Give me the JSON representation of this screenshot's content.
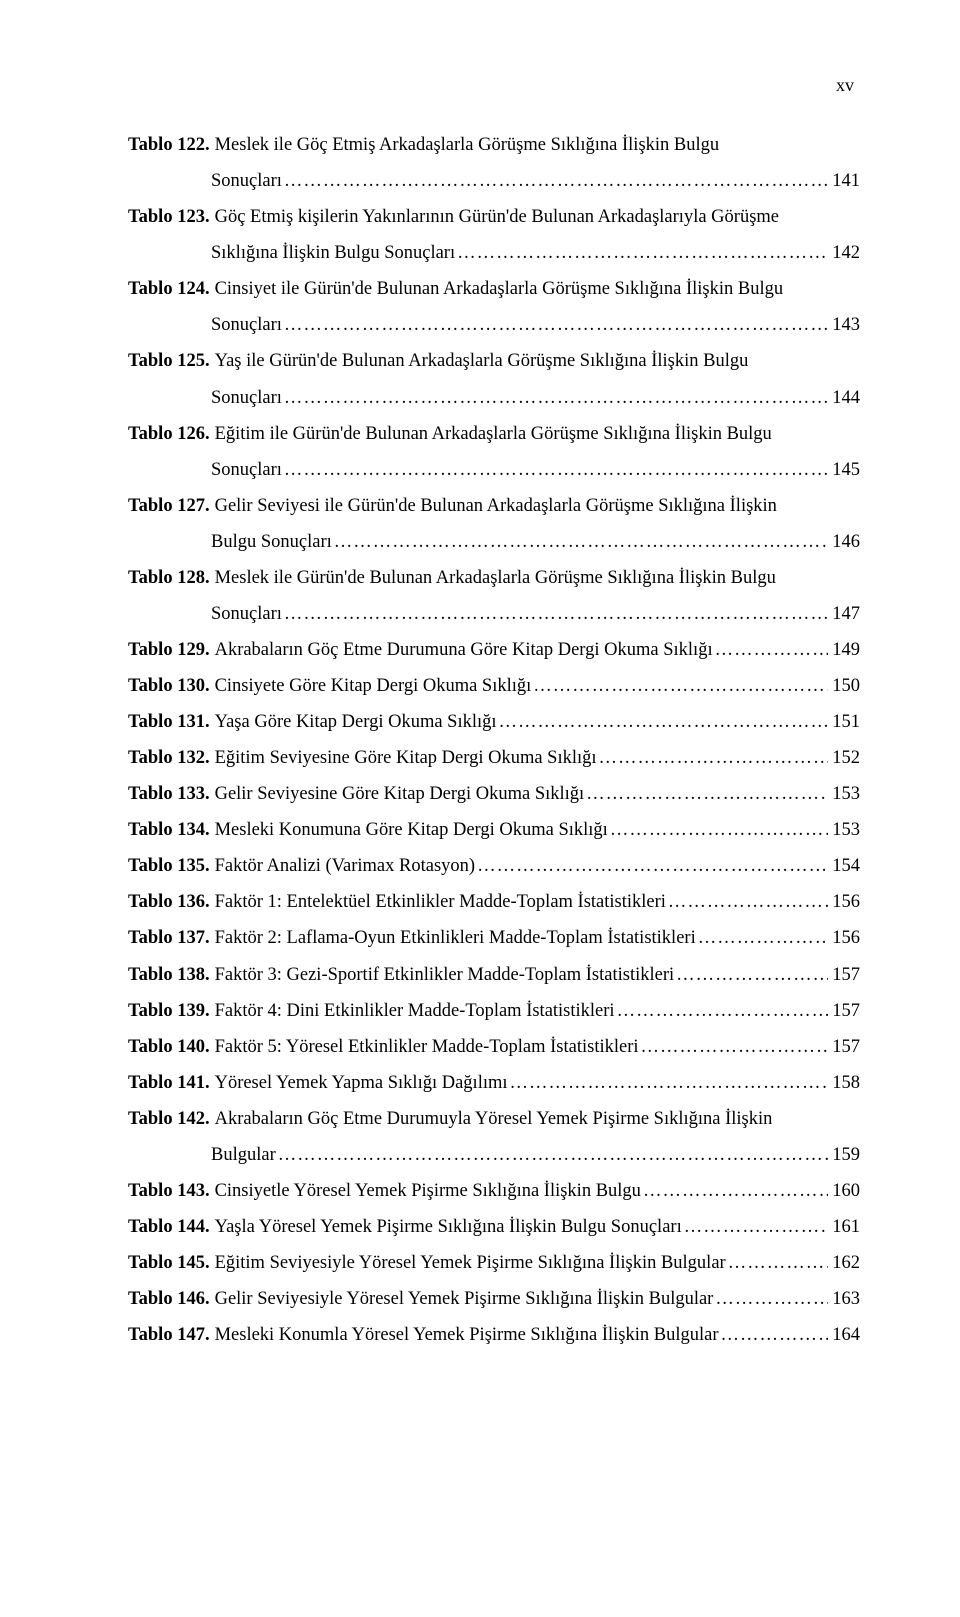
{
  "page_number": "xv",
  "font_family": "Times New Roman",
  "base_font_size_pt": 14,
  "text_color": "#000000",
  "background_color": "#ffffff",
  "entries": [
    {
      "label": "Tablo 122.",
      "lines": [
        "Meslek ile Göç Etmiş Arkadaşlarla Görüşme Sıklığına İlişkin Bulgu",
        "Sonuçları"
      ],
      "page": "141"
    },
    {
      "label": "Tablo 123.",
      "lines": [
        "Göç Etmiş kişilerin Yakınlarının Gürün'de Bulunan Arkadaşlarıyla Görüşme",
        "Sıklığına İlişkin Bulgu Sonuçları"
      ],
      "page": "142"
    },
    {
      "label": "Tablo 124.",
      "lines": [
        "Cinsiyet ile Gürün'de Bulunan Arkadaşlarla Görüşme Sıklığına İlişkin Bulgu",
        "Sonuçları"
      ],
      "page": "143"
    },
    {
      "label": "Tablo 125.",
      "lines": [
        "Yaş ile Gürün'de Bulunan Arkadaşlarla Görüşme Sıklığına İlişkin Bulgu",
        "Sonuçları"
      ],
      "page": "144"
    },
    {
      "label": "Tablo 126.",
      "lines": [
        "Eğitim ile Gürün'de Bulunan Arkadaşlarla Görüşme Sıklığına İlişkin Bulgu",
        "Sonuçları"
      ],
      "page": "145"
    },
    {
      "label": "Tablo 127.",
      "lines": [
        "Gelir Seviyesi ile Gürün'de Bulunan Arkadaşlarla Görüşme Sıklığına İlişkin",
        "Bulgu Sonuçları"
      ],
      "page": "146"
    },
    {
      "label": "Tablo 128.",
      "lines": [
        "Meslek ile Gürün'de Bulunan Arkadaşlarla Görüşme Sıklığına İlişkin Bulgu",
        "Sonuçları"
      ],
      "page": "147"
    },
    {
      "label": "Tablo 129.",
      "lines": [
        "Akrabaların Göç Etme Durumuna Göre Kitap Dergi Okuma Sıklığı"
      ],
      "page": "149"
    },
    {
      "label": "Tablo 130.",
      "lines": [
        "Cinsiyete Göre Kitap Dergi Okuma Sıklığı"
      ],
      "page": "150"
    },
    {
      "label": "Tablo 131.",
      "lines": [
        "Yaşa Göre Kitap Dergi Okuma Sıklığı"
      ],
      "page": "151"
    },
    {
      "label": "Tablo 132.",
      "lines": [
        "Eğitim Seviyesine Göre Kitap Dergi Okuma Sıklığı"
      ],
      "page": "152"
    },
    {
      "label": "Tablo 133.",
      "lines": [
        "Gelir Seviyesine Göre Kitap Dergi Okuma Sıklığı"
      ],
      "page": "153"
    },
    {
      "label": "Tablo 134.",
      "lines": [
        "Mesleki Konumuna Göre Kitap Dergi Okuma Sıklığı"
      ],
      "page": "153"
    },
    {
      "label": "Tablo 135.",
      "lines": [
        "Faktör Analizi (Varimax Rotasyon)"
      ],
      "page": "154"
    },
    {
      "label": "Tablo 136.",
      "lines": [
        "Faktör 1: Entelektüel Etkinlikler Madde-Toplam İstatistikleri"
      ],
      "page": "156"
    },
    {
      "label": "Tablo 137.",
      "lines": [
        "Faktör 2: Laflama-Oyun Etkinlikleri Madde-Toplam İstatistikleri"
      ],
      "page": "156"
    },
    {
      "label": "Tablo 138.",
      "lines": [
        "Faktör 3: Gezi-Sportif Etkinlikler Madde-Toplam İstatistikleri"
      ],
      "page": "157"
    },
    {
      "label": "Tablo 139.",
      "lines": [
        "Faktör 4: Dini Etkinlikler Madde-Toplam İstatistikleri"
      ],
      "page": "157"
    },
    {
      "label": "Tablo 140.",
      "lines": [
        "Faktör 5: Yöresel Etkinlikler Madde-Toplam İstatistikleri"
      ],
      "page": "157"
    },
    {
      "label": "Tablo 141.",
      "lines": [
        "Yöresel Yemek Yapma Sıklığı Dağılımı"
      ],
      "page": "158"
    },
    {
      "label": "Tablo 142.",
      "lines": [
        "Akrabaların Göç Etme Durumuyla Yöresel Yemek Pişirme Sıklığına İlişkin",
        "Bulgular"
      ],
      "page": "159"
    },
    {
      "label": "Tablo 143.",
      "lines": [
        "Cinsiyetle Yöresel Yemek Pişirme Sıklığına İlişkin Bulgu"
      ],
      "page": "160"
    },
    {
      "label": "Tablo 144.",
      "lines": [
        "Yaşla Yöresel Yemek Pişirme Sıklığına İlişkin Bulgu Sonuçları"
      ],
      "page": "161"
    },
    {
      "label": "Tablo 145.",
      "lines": [
        "Eğitim Seviyesiyle Yöresel Yemek Pişirme Sıklığına İlişkin Bulgular"
      ],
      "page": "162"
    },
    {
      "label": "Tablo 146.",
      "lines": [
        "Gelir Seviyesiyle Yöresel Yemek Pişirme Sıklığına İlişkin Bulgular"
      ],
      "page": "163"
    },
    {
      "label": "Tablo 147.",
      "lines": [
        "Mesleki Konumla Yöresel Yemek Pişirme Sıklığına İlişkin Bulgular"
      ],
      "page": "164"
    }
  ]
}
